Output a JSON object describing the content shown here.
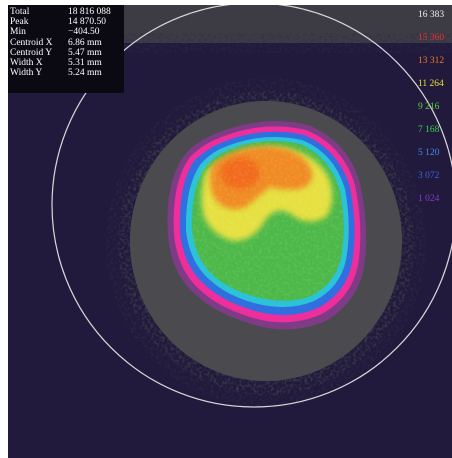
{
  "stats": [
    {
      "label": "Total",
      "value": "18 816 088"
    },
    {
      "label": "Peak",
      "value": "14 870.50"
    },
    {
      "label": "Min",
      "value": "−404.50"
    },
    {
      "label": "Centroid X",
      "value": "6.86 mm"
    },
    {
      "label": "Centroid Y",
      "value": "5.47 mm"
    },
    {
      "label": "Width X",
      "value": "5.31 mm"
    },
    {
      "label": "Width Y",
      "value": "5.24 mm"
    }
  ],
  "scale": [
    {
      "value": "16 383",
      "color": "#f0f0f0"
    },
    {
      "value": "15 360",
      "color": "#e8323a"
    },
    {
      "value": "13 312",
      "color": "#f07a28"
    },
    {
      "value": "11 264",
      "color": "#e8e030"
    },
    {
      "value": "9 216",
      "color": "#5cd03c"
    },
    {
      "value": "7 168",
      "color": "#3cd050"
    },
    {
      "value": "5 120",
      "color": "#3c8ce8"
    },
    {
      "value": "3 072",
      "color": "#3c64e0"
    },
    {
      "value": "1 024",
      "color": "#7c3cc8"
    }
  ],
  "colors": {
    "background": "#211a3d",
    "halo": "#4b4a4e",
    "edge": "#9a3b8a",
    "pink": "#ee2e9a",
    "blue": "#2f7fdc",
    "cyan": "#2cc3d8",
    "green": "#4cb848",
    "yellow": "#e6e040",
    "orange": "#f08a22",
    "circle": "#d9d9d9"
  }
}
